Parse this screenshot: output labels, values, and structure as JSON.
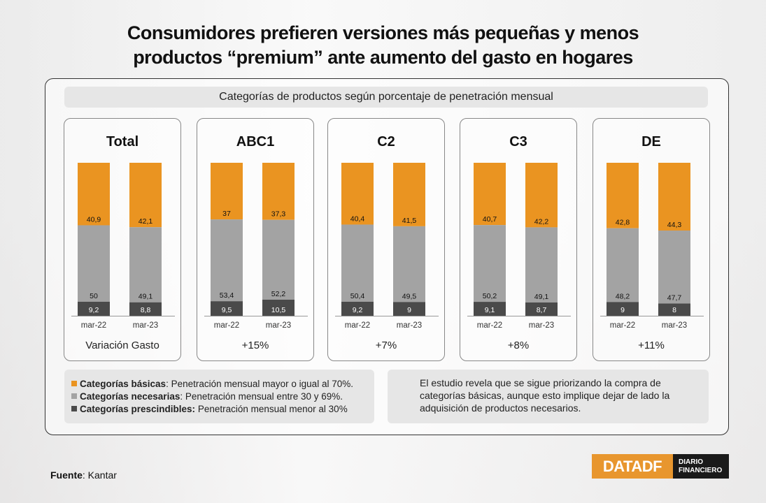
{
  "title_line1": "Consumidores prefieren versiones más pequeñas y menos",
  "title_line2": "productos “premium” ante aumento del gasto en hogares",
  "subtitle": "Categorías de productos según porcentaje de penetración mensual",
  "colors": {
    "basicas": "#ea9421",
    "necesarias": "#a3a3a3",
    "prescindibles": "#4a4a4a"
  },
  "chart_data": {
    "type": "bar",
    "stacked": true,
    "categories": [
      "mar-22",
      "mar-23"
    ],
    "series_names": [
      "Categorías básicas",
      "Categorías necesarias",
      "Categorías prescindibles"
    ],
    "ylim": [
      0,
      100
    ],
    "panels": [
      {
        "title": "Total",
        "footer": "Variación Gasto",
        "bars": [
          {
            "label": "mar-22",
            "basicas": 40.9,
            "necesarias": 50,
            "prescindibles": 9.2,
            "labels": [
              "40,9",
              "50",
              "9,2"
            ]
          },
          {
            "label": "mar-23",
            "basicas": 42.1,
            "necesarias": 49.1,
            "prescindibles": 8.8,
            "labels": [
              "42,1",
              "49,1",
              "8,8"
            ]
          }
        ]
      },
      {
        "title": "ABC1",
        "footer": "+15%",
        "bars": [
          {
            "label": "mar-22",
            "basicas": 37,
            "necesarias": 53.4,
            "prescindibles": 9.5,
            "labels": [
              "37",
              "53,4",
              "9,5"
            ]
          },
          {
            "label": "mar-23",
            "basicas": 37.3,
            "necesarias": 52.2,
            "prescindibles": 10.5,
            "labels": [
              "37,3",
              "52,2",
              "10,5"
            ]
          }
        ]
      },
      {
        "title": "C2",
        "footer": "+7%",
        "bars": [
          {
            "label": "mar-22",
            "basicas": 40.4,
            "necesarias": 50.4,
            "prescindibles": 9.2,
            "labels": [
              "40,4",
              "50,4",
              "9,2"
            ]
          },
          {
            "label": "mar-23",
            "basicas": 41.5,
            "necesarias": 49.5,
            "prescindibles": 9,
            "labels": [
              "41,5",
              "49,5",
              "9"
            ]
          }
        ]
      },
      {
        "title": "C3",
        "footer": "+8%",
        "bars": [
          {
            "label": "mar-22",
            "basicas": 40.7,
            "necesarias": 50.2,
            "prescindibles": 9.1,
            "labels": [
              "40,7",
              "50,2",
              "9,1"
            ]
          },
          {
            "label": "mar-23",
            "basicas": 42.2,
            "necesarias": 49.1,
            "prescindibles": 8.7,
            "labels": [
              "42,2",
              "49,1",
              "8,7"
            ]
          }
        ]
      },
      {
        "title": "DE",
        "footer": "+11%",
        "bars": [
          {
            "label": "mar-22",
            "basicas": 42.8,
            "necesarias": 48.2,
            "prescindibles": 9,
            "labels": [
              "42,8",
              "48,2",
              "9"
            ]
          },
          {
            "label": "mar-23",
            "basicas": 44.3,
            "necesarias": 47.7,
            "prescindibles": 8,
            "labels": [
              "44,3",
              "47,7",
              "8"
            ]
          }
        ]
      }
    ]
  },
  "legend": [
    {
      "bold": "Categorías básicas",
      "sep": ": ",
      "text": "Penetración mensual mayor o igual al 70%.",
      "color_key": "basicas"
    },
    {
      "bold": "Categorías necesarias",
      "sep": ": ",
      "text": "Penetración mensual entre 30 y 69%.",
      "color_key": "necesarias"
    },
    {
      "bold": "Categorías prescindibles:",
      "sep": " ",
      "text": "Penetración mensual menor al 30%",
      "color_key": "prescindibles"
    }
  ],
  "note_line1": "El estudio revela que se sigue priorizando la compra de",
  "note_line2": "categorías básicas, aunque esto implique dejar de lado la",
  "note_line3": "adquisición de productos necesarios.",
  "source_label": "Fuente",
  "source_text": ": Kantar",
  "logo": {
    "data": "DATA",
    "df": "DF",
    "diario_line1": "DIARIO",
    "diario_line2": "FINANCIERO"
  }
}
